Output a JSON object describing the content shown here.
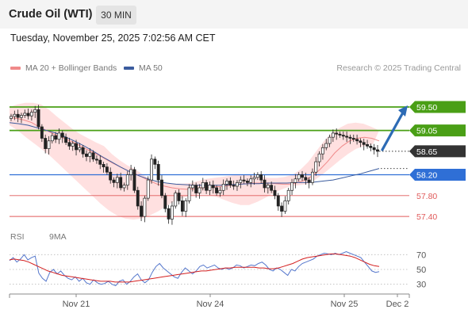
{
  "header": {
    "title": "Crude Oil (WTI)",
    "timeframe": "30 MIN"
  },
  "datetime": "Tuesday, November 25, 2025 7:02:56 AM CET",
  "legend": {
    "ma20_label": "MA 20 + Bollinger Bands",
    "ma50_label": "MA 50",
    "credit": "Research © 2025 Trading Central"
  },
  "colors": {
    "resistance": "#4a9f16",
    "pivot": "#2f6fd6",
    "support": "#e05a5a",
    "last": "#333333",
    "arrow": "#2d6bb5",
    "ma20": "#f08a8a",
    "ma50": "#3b5c9e",
    "rsi": "#5577cc",
    "rsi_ma": "#d42020"
  },
  "chart_data": [
    {
      "type": "candlestick",
      "levels": [
        {
          "value": 59.5,
          "label": "59.50",
          "kind": "resistance"
        },
        {
          "value": 59.05,
          "label": "59.05",
          "kind": "resistance"
        },
        {
          "value": 58.65,
          "label": "58.65",
          "kind": "last"
        },
        {
          "value": 58.2,
          "label": "58.20",
          "kind": "pivot"
        },
        {
          "value": 57.8,
          "label": "57.80",
          "kind": "support"
        },
        {
          "value": 57.4,
          "label": "57.40",
          "kind": "support"
        }
      ],
      "ylim": [
        57.25,
        59.85
      ],
      "x_tick_labels": [
        "Nov 21",
        "Nov 24",
        "Nov 25",
        "Dec 2"
      ],
      "closes": [
        59.32,
        59.36,
        59.3,
        59.34,
        59.38,
        59.33,
        59.4,
        59.45,
        59.12,
        58.9,
        58.7,
        58.85,
        58.95,
        58.88,
        59.0,
        58.92,
        58.82,
        58.75,
        58.8,
        58.68,
        58.72,
        58.6,
        58.55,
        58.62,
        58.5,
        58.48,
        58.4,
        58.35,
        58.25,
        58.1,
        58.05,
        58.15,
        57.95,
        58.0,
        58.2,
        58.3,
        57.9,
        57.6,
        57.4,
        57.75,
        58.1,
        58.5,
        58.4,
        58.1,
        57.8,
        57.55,
        57.35,
        57.6,
        57.85,
        57.7,
        57.5,
        57.7,
        57.95,
        58.0,
        57.85,
        57.95,
        58.05,
        57.9,
        58.0,
        57.95,
        57.85,
        57.9,
        58.02,
        58.08,
        58.0,
        57.98,
        58.05,
        58.1,
        58.08,
        58.05,
        58.12,
        58.15,
        58.2,
        58.1,
        57.95,
        58.0,
        57.9,
        57.8,
        57.6,
        57.5,
        57.7,
        57.9,
        58.05,
        58.12,
        58.2,
        58.15,
        58.1,
        58.05,
        58.25,
        58.45,
        58.6,
        58.72,
        58.8,
        58.92,
        59.0,
        58.98,
        58.96,
        58.94,
        58.92,
        58.9,
        58.88,
        58.85,
        58.82,
        58.78,
        58.75,
        58.72,
        58.68,
        58.65
      ],
      "ma20": [
        59.3,
        59.28,
        59.25,
        59.2,
        59.12,
        59.05,
        58.98,
        58.92,
        58.86,
        58.8,
        58.72,
        58.65,
        58.58,
        58.5,
        58.42,
        58.35,
        58.28,
        58.22,
        58.15,
        58.08,
        58.02,
        57.98,
        57.95,
        57.93,
        57.92,
        57.93,
        57.95,
        57.96,
        57.97,
        57.98,
        58.0,
        58.02,
        58.03,
        58.04,
        58.04,
        58.04,
        58.03,
        58.02,
        58.02,
        58.05,
        58.1,
        58.18,
        58.3,
        58.45,
        58.62,
        58.75,
        58.85,
        58.9,
        58.92,
        58.9,
        58.85
      ],
      "ma50": [
        59.2,
        59.18,
        59.15,
        59.1,
        59.05,
        59.0,
        58.93,
        58.85,
        58.76,
        58.66,
        58.55,
        58.45,
        58.35,
        58.26,
        58.18,
        58.12,
        58.07,
        58.04,
        58.02,
        58.01,
        58.0,
        58.0,
        58.0,
        58.0,
        58.01,
        58.02,
        58.03,
        58.03,
        58.04,
        58.04,
        58.04,
        58.05,
        58.05,
        58.06,
        58.08,
        58.1,
        58.14,
        58.18,
        58.22,
        58.27,
        58.32
      ],
      "bb_upper": [
        59.5,
        59.55,
        59.58,
        59.58,
        59.55,
        59.45,
        59.32,
        59.2,
        59.08,
        58.98,
        58.9,
        58.82,
        58.75,
        58.6,
        58.48,
        58.38,
        58.3,
        58.2,
        58.1,
        58.06,
        58.04,
        58.03,
        58.03,
        58.04,
        58.08,
        58.12,
        58.14,
        58.16,
        58.18,
        58.2,
        58.2,
        58.18,
        58.16,
        58.14,
        58.14,
        58.16,
        58.2,
        58.3,
        58.45,
        58.65,
        58.85,
        59.0,
        59.1,
        59.18,
        59.2,
        59.18,
        59.12,
        59.05
      ],
      "bb_lower": [
        59.15,
        59.05,
        58.92,
        58.8,
        58.68,
        58.55,
        58.4,
        58.25,
        58.1,
        57.95,
        57.8,
        57.65,
        57.52,
        57.42,
        57.36,
        57.34,
        57.36,
        57.42,
        57.5,
        57.6,
        57.7,
        57.76,
        57.8,
        57.82,
        57.82,
        57.78,
        57.72,
        57.66,
        57.62,
        57.62,
        57.68,
        57.76,
        57.85,
        57.92,
        57.98,
        58.0,
        58.02,
        58.1,
        58.22,
        58.35,
        58.48,
        58.6,
        58.7,
        58.75,
        58.78
      ]
    },
    {
      "type": "line",
      "legend": [
        {
          "name": "RSI"
        },
        {
          "name": "9MA"
        }
      ],
      "ylim": [
        20,
        80
      ],
      "y_ticks": [
        70,
        50,
        30
      ],
      "rsi": [
        62,
        66,
        60,
        64,
        70,
        63,
        66,
        68,
        45,
        38,
        34,
        46,
        50,
        44,
        48,
        42,
        38,
        36,
        40,
        34,
        38,
        32,
        30,
        36,
        32,
        30,
        31,
        34,
        30,
        28,
        34,
        36,
        30,
        34,
        40,
        44,
        36,
        32,
        36,
        46,
        54,
        58,
        52,
        48,
        44,
        40,
        38,
        46,
        52,
        48,
        44,
        48,
        54,
        56,
        52,
        54,
        56,
        52,
        50,
        52,
        50,
        52,
        56,
        55,
        52,
        54,
        56,
        55,
        58,
        60,
        56,
        50,
        48,
        52,
        50,
        46,
        42,
        50,
        48,
        54,
        58,
        60,
        62,
        64,
        68,
        70,
        72,
        71,
        70,
        72,
        70,
        72,
        74,
        72,
        70,
        68,
        66,
        60,
        54,
        48,
        46,
        47
      ],
      "rsi_ma": [
        63,
        64,
        63,
        62,
        60,
        57,
        54,
        51,
        48,
        46,
        44,
        42,
        41,
        40,
        39,
        38,
        37,
        36,
        35,
        34,
        34,
        34,
        33,
        33,
        33,
        33,
        34,
        35,
        36,
        37,
        38,
        39,
        40,
        41,
        42,
        43,
        44,
        45,
        46,
        47,
        48,
        48,
        49,
        50,
        51,
        52,
        52,
        53,
        53,
        53,
        53,
        53,
        52,
        52,
        51,
        51,
        52,
        54,
        56,
        58,
        61,
        64,
        66,
        67,
        68,
        69,
        70,
        71,
        71,
        70,
        69,
        68,
        66,
        63,
        60,
        57,
        55,
        54
      ]
    }
  ]
}
